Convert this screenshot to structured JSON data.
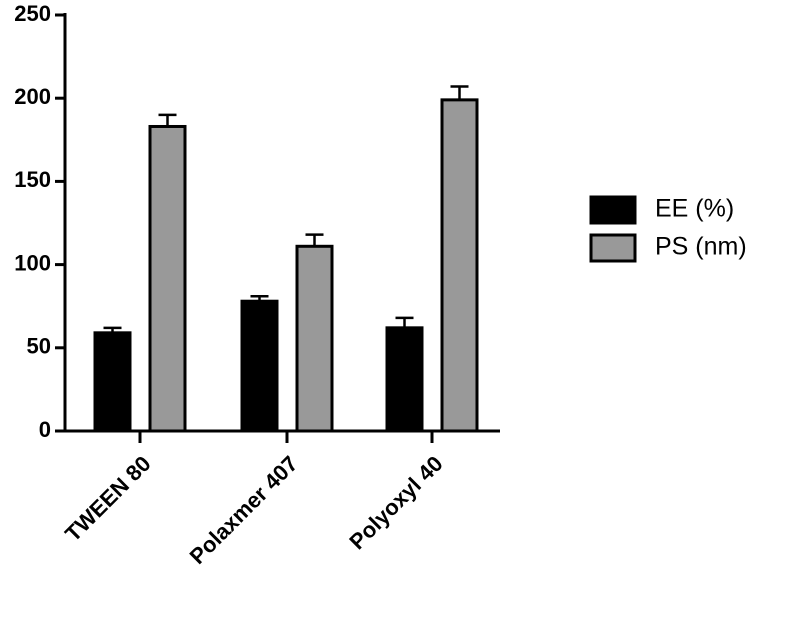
{
  "chart_data": {
    "type": "bar",
    "categories": [
      "TWEEN 80",
      "Polaxmer 407",
      "Polyoxyl 40"
    ],
    "series": [
      {
        "name": "EE (%)",
        "color": "#000000",
        "values": [
          59,
          78,
          62
        ],
        "errors": [
          3,
          3,
          6
        ]
      },
      {
        "name": "PS (nm)",
        "color": "#999999",
        "values": [
          183,
          111,
          199
        ],
        "errors": [
          7,
          7,
          8
        ]
      }
    ],
    "ylim": [
      0,
      250
    ],
    "yticks": [
      0,
      50,
      100,
      150,
      200,
      250
    ],
    "legend": "right"
  }
}
